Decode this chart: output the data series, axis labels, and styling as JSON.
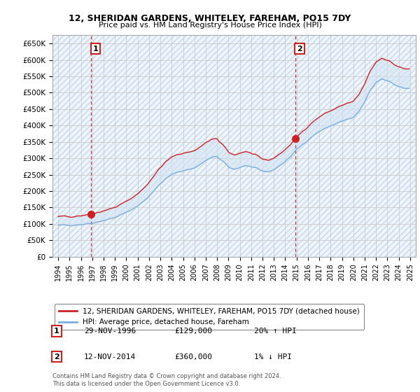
{
  "title": "12, SHERIDAN GARDENS, WHITELEY, FAREHAM, PO15 7DY",
  "subtitle": "Price paid vs. HM Land Registry's House Price Index (HPI)",
  "legend_line1": "12, SHERIDAN GARDENS, WHITELEY, FAREHAM, PO15 7DY (detached house)",
  "legend_line2": "HPI: Average price, detached house, Fareham",
  "table_rows": [
    {
      "num": "1",
      "date": "29-NOV-1996",
      "price": "£129,000",
      "hpi": "20% ↑ HPI"
    },
    {
      "num": "2",
      "date": "12-NOV-2014",
      "price": "£360,000",
      "hpi": "1% ↓ HPI"
    }
  ],
  "footnote": "Contains HM Land Registry data © Crown copyright and database right 2024.\nThis data is licensed under the Open Government Licence v3.0.",
  "sale1_year": 1996.917,
  "sale1_price": 129000,
  "sale2_year": 2014.875,
  "sale2_price": 360000,
  "hpi_line_color": "#7aade0",
  "hpi_fill_color": "#d0e4f5",
  "price_line_color": "#cc2222",
  "sale_marker_color": "#cc2222",
  "dashed_line_color": "#cc2222",
  "grid_color": "#cccccc",
  "ylim": [
    0,
    675000
  ],
  "yticks": [
    0,
    50000,
    100000,
    150000,
    200000,
    250000,
    300000,
    350000,
    400000,
    450000,
    500000,
    550000,
    600000,
    650000
  ],
  "ytick_labels": [
    "£0",
    "£50K",
    "£100K",
    "£150K",
    "£200K",
    "£250K",
    "£300K",
    "£350K",
    "£400K",
    "£450K",
    "£500K",
    "£550K",
    "£600K",
    "£650K"
  ],
  "xmin": 1993.5,
  "xmax": 2025.5,
  "xtick_years": [
    1994,
    1995,
    1996,
    1997,
    1998,
    1999,
    2000,
    2001,
    2002,
    2003,
    2004,
    2005,
    2006,
    2007,
    2008,
    2009,
    2010,
    2011,
    2012,
    2013,
    2014,
    2015,
    2016,
    2017,
    2018,
    2019,
    2020,
    2021,
    2022,
    2023,
    2024,
    2025
  ]
}
